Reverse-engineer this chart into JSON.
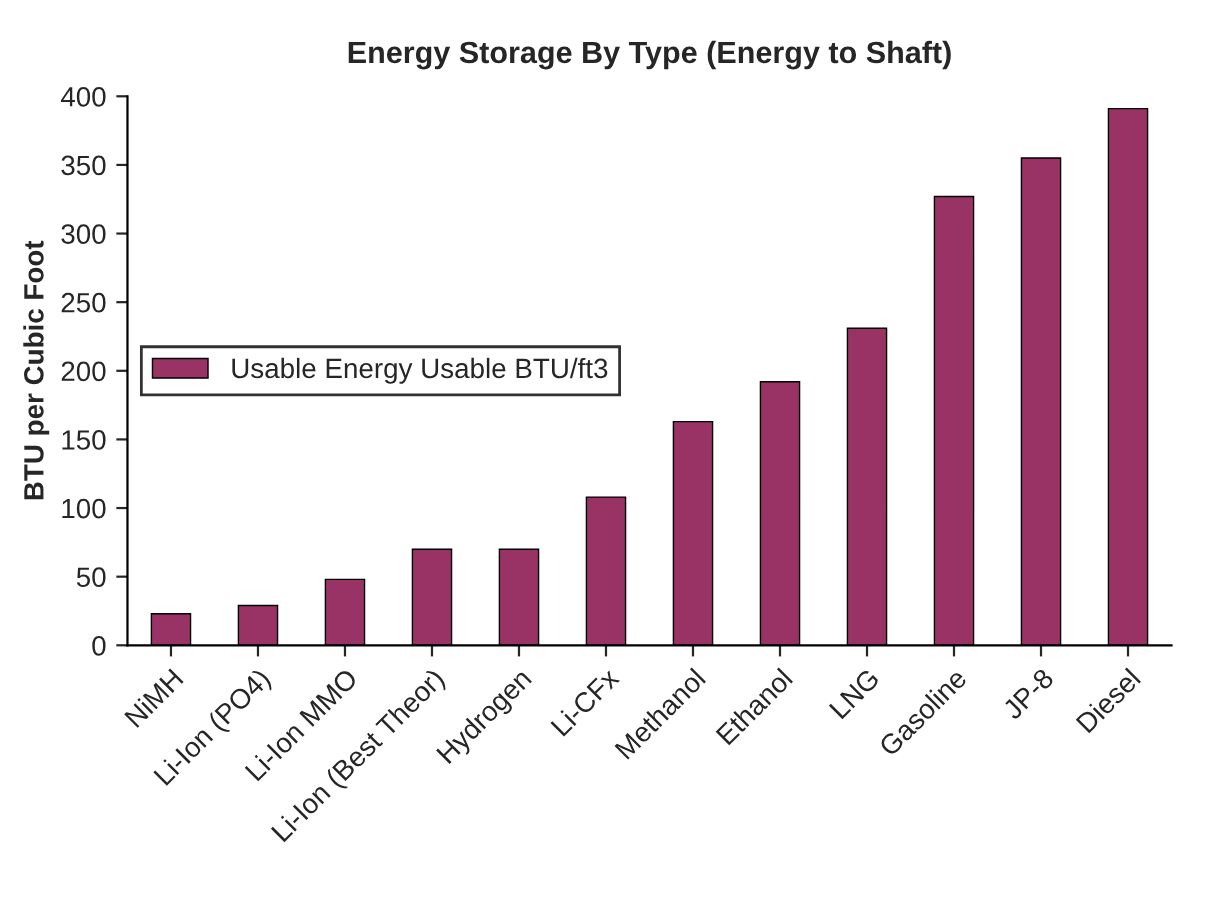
{
  "chart_data": {
    "type": "bar",
    "title": "Energy Storage By Type (Energy to Shaft)",
    "ylabel": "BTU per Cubic Foot",
    "categories": [
      "NiMH",
      "Li-Ion (PO4)",
      "Li-Ion MMO",
      "Li-Ion (Best Theor)",
      "Hydrogen",
      "Li-CFx",
      "Methanol",
      "Ethanol",
      "LNG",
      "Gasoline",
      "JP-8",
      "Diesel"
    ],
    "series": [
      {
        "name": "Usable Energy Usable BTU/ft3",
        "color": "#993366",
        "values": [
          23,
          29,
          48,
          70,
          70,
          108,
          163,
          192,
          231,
          327,
          355,
          391
        ]
      }
    ],
    "ylim": [
      0,
      400
    ],
    "yticks": [
      0,
      50,
      100,
      150,
      200,
      250,
      300,
      350,
      400
    ],
    "grid": false,
    "legend": "left"
  }
}
